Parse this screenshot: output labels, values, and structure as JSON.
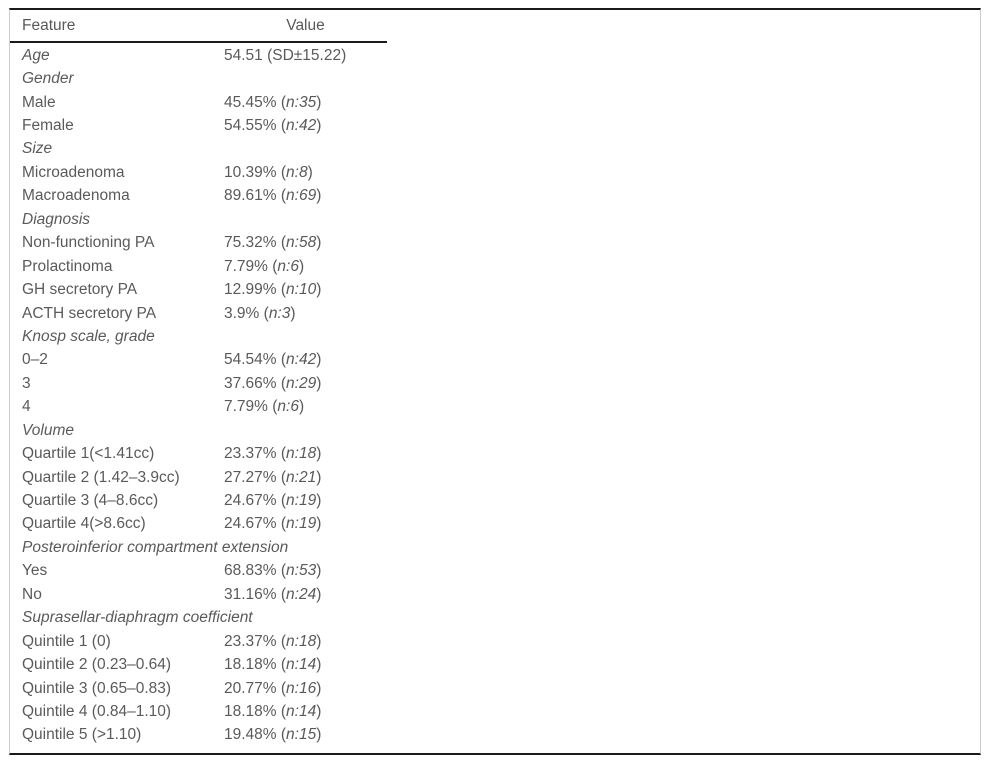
{
  "colors": {
    "text": "#5a5a5c",
    "rule": "#1a1a1a",
    "frame_border": "#cccccc",
    "background": "#ffffff"
  },
  "table": {
    "columns": {
      "feature": "Feature",
      "value": "Value"
    },
    "rows": [
      {
        "label": "Age",
        "italic_label": true,
        "value_plain": "54.51 (SD±15.22)"
      },
      {
        "label": "Gender",
        "italic_label": true
      },
      {
        "label": "Male",
        "value_stat": "45.45%",
        "n": "n:35"
      },
      {
        "label": "Female",
        "value_stat": "54.55%",
        "n": "n:42"
      },
      {
        "label": "Size",
        "italic_label": true
      },
      {
        "label": "Microadenoma",
        "value_stat": "10.39%",
        "n": "n:8"
      },
      {
        "label": "Macroadenoma",
        "value_stat": "89.61%",
        "n": "n:69"
      },
      {
        "label": "Diagnosis",
        "italic_label": true
      },
      {
        "label": "Non-functioning PA",
        "value_stat": "75.32%",
        "n": "n:58"
      },
      {
        "label": "Prolactinoma",
        "value_stat": "7.79%",
        "n": "n:6"
      },
      {
        "label": "GH secretory PA",
        "value_stat": "12.99%",
        "n": "n:10"
      },
      {
        "label": "ACTH secretory PA",
        "value_stat": "3.9%",
        "n": "n:3"
      },
      {
        "label": "Knosp scale, grade",
        "italic_label": true
      },
      {
        "label": "0–2",
        "value_stat": "54.54%",
        "n": "n:42"
      },
      {
        "label": "3",
        "value_stat": "37.66%",
        "n": "n:29"
      },
      {
        "label": "4",
        "value_stat": "7.79%",
        "n": "n:6"
      },
      {
        "label": "Volume",
        "italic_label": true
      },
      {
        "label": "Quartile 1(<1.41cc)",
        "value_stat": "23.37%",
        "n": "n:18"
      },
      {
        "label": "Quartile 2 (1.42–3.9cc)",
        "value_stat": "27.27%",
        "n": "n:21"
      },
      {
        "label": "Quartile 3 (4–8.6cc)",
        "value_stat": "24.67%",
        "n": "n:19"
      },
      {
        "label": "Quartile 4(>8.6cc)",
        "value_stat": "24.67%",
        "n": "n:19"
      },
      {
        "label": "Posteroinferior compartment extension",
        "italic_label": true
      },
      {
        "label": "Yes",
        "value_stat": "68.83%",
        "n": "n:53"
      },
      {
        "label": "No",
        "value_stat": "31.16%",
        "n": "n:24"
      },
      {
        "label": "Suprasellar-diaphragm coefficient",
        "italic_label": true
      },
      {
        "label": "Quintile 1 (0)",
        "value_stat": "23.37%",
        "n": "n:18"
      },
      {
        "label": "Quintile 2 (0.23–0.64)",
        "value_stat": "18.18%",
        "n": "n:14"
      },
      {
        "label": "Quintile 3 (0.65–0.83)",
        "value_stat": "20.77%",
        "n": "n:16"
      },
      {
        "label": "Quintile 4 (0.84–1.10)",
        "value_stat": "18.18%",
        "n": "n:14"
      },
      {
        "label": "Quintile 5 (>1.10)",
        "value_stat": "19.48%",
        "n": "n:15"
      }
    ]
  }
}
